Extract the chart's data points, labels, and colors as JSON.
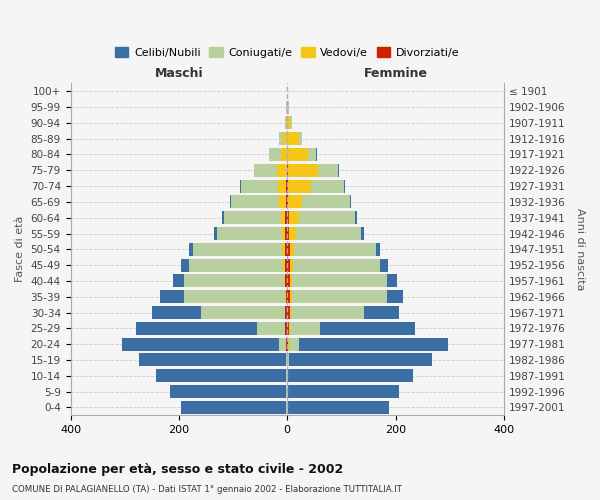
{
  "age_groups": [
    "0-4",
    "5-9",
    "10-14",
    "15-19",
    "20-24",
    "25-29",
    "30-34",
    "35-39",
    "40-44",
    "45-49",
    "50-54",
    "55-59",
    "60-64",
    "65-69",
    "70-74",
    "75-79",
    "80-84",
    "85-89",
    "90-94",
    "95-99",
    "100+"
  ],
  "birth_years": [
    "1997-2001",
    "1992-1996",
    "1987-1991",
    "1982-1986",
    "1977-1981",
    "1972-1976",
    "1967-1971",
    "1962-1966",
    "1957-1961",
    "1952-1956",
    "1947-1951",
    "1942-1946",
    "1937-1941",
    "1932-1936",
    "1927-1931",
    "1922-1926",
    "1917-1921",
    "1912-1916",
    "1907-1911",
    "1902-1906",
    "≤ 1901"
  ],
  "male": {
    "celibi": [
      195,
      215,
      240,
      270,
      290,
      225,
      90,
      45,
      20,
      15,
      8,
      5,
      3,
      2,
      2,
      1,
      0,
      0,
      0,
      0,
      0
    ],
    "coniugati": [
      2,
      2,
      2,
      3,
      12,
      50,
      155,
      185,
      185,
      175,
      165,
      120,
      105,
      88,
      68,
      42,
      22,
      8,
      2,
      1,
      0
    ],
    "vedovi": [
      0,
      0,
      0,
      0,
      1,
      1,
      1,
      2,
      2,
      3,
      5,
      6,
      8,
      12,
      15,
      18,
      12,
      8,
      2,
      1,
      0
    ],
    "divorziati": [
      0,
      0,
      0,
      0,
      2,
      4,
      4,
      3,
      4,
      4,
      4,
      4,
      4,
      3,
      2,
      1,
      0,
      0,
      0,
      0,
      0
    ]
  },
  "female": {
    "nubili": [
      185,
      205,
      230,
      265,
      275,
      175,
      65,
      30,
      18,
      15,
      8,
      5,
      3,
      2,
      2,
      1,
      1,
      0,
      0,
      0,
      0
    ],
    "coniugate": [
      2,
      2,
      2,
      3,
      18,
      55,
      135,
      175,
      175,
      160,
      150,
      120,
      105,
      88,
      62,
      38,
      16,
      6,
      2,
      1,
      0
    ],
    "vedove": [
      0,
      0,
      0,
      0,
      1,
      2,
      2,
      3,
      4,
      6,
      8,
      12,
      18,
      25,
      42,
      55,
      38,
      22,
      6,
      2,
      0
    ],
    "divorziate": [
      0,
      0,
      0,
      0,
      2,
      4,
      5,
      6,
      5,
      5,
      5,
      4,
      3,
      2,
      1,
      1,
      0,
      0,
      0,
      0,
      0
    ]
  },
  "colors": {
    "celibi": "#3a6ea5",
    "coniugati": "#b8cfa0",
    "vedovi": "#f5c518",
    "divorziati": "#cc2200"
  },
  "title": "Popolazione per età, sesso e stato civile - 2002",
  "subtitle": "COMUNE DI PALAGIANELLO (TA) - Dati ISTAT 1° gennaio 2002 - Elaborazione TUTTITALIA.IT",
  "ylabel_left": "Fasce di età",
  "ylabel_right": "Anni di nascita",
  "xlabel_left": "Maschi",
  "xlabel_right": "Femmine",
  "xlim": 400,
  "bg_color": "#f5f5f5",
  "grid_color": "#cccccc",
  "legend_labels": [
    "Celibi/Nubili",
    "Coniugati/e",
    "Vedovi/e",
    "Divorziati/e"
  ]
}
